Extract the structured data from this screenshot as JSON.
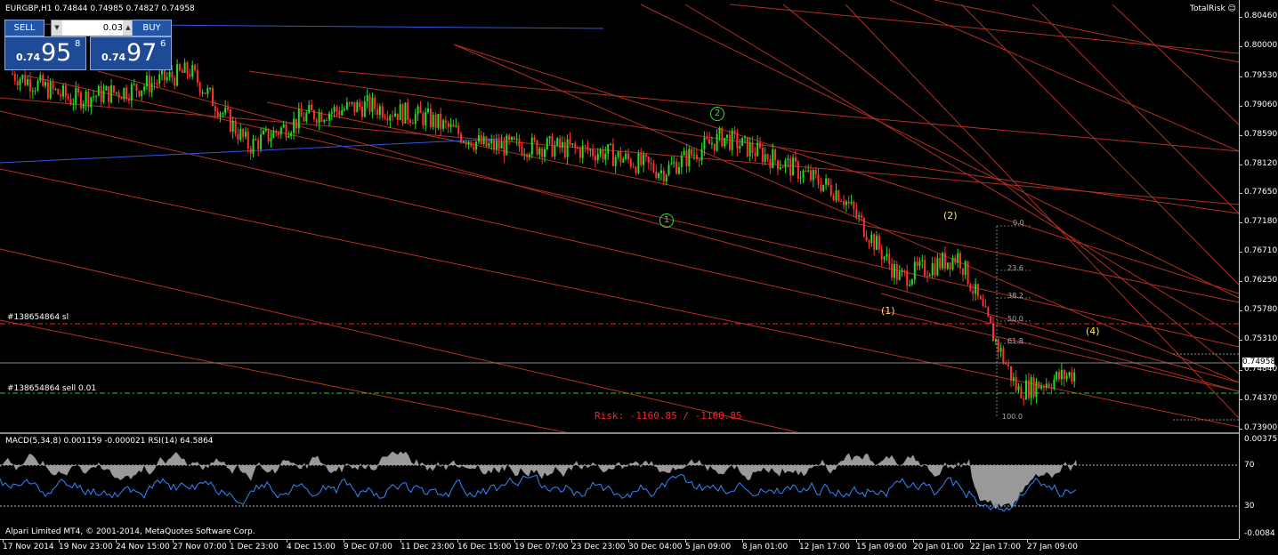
{
  "header": {
    "symbol_title": "EURGBP,H1  0.74844 0.74985 0.74827 0.74958",
    "total_risk": "TotalRisk ☺"
  },
  "one_click": {
    "sell_label": "SELL",
    "buy_label": "BUY",
    "lot_value": "0.03",
    "sell_price_prefix": "0.74",
    "sell_price_big": "95",
    "sell_price_sup": "8",
    "buy_price_prefix": "0.74",
    "buy_price_big": "97",
    "buy_price_sup": "6"
  },
  "orders": {
    "sl_label": "#138654864 sl",
    "sell_label": "#138654864 sell 0.01"
  },
  "risk_text": "Risk: -1160.85 / -1160.85",
  "fib_levels": [
    "0.0",
    "23.6",
    "38.2",
    "50.0",
    "61.8",
    "100.0"
  ],
  "waves": {
    "green": [
      "1",
      "2"
    ],
    "yellow": [
      "(1)",
      "(2)",
      "(4)"
    ]
  },
  "price_axis": [
    "0.80460",
    "0.80000",
    "0.79530",
    "0.79060",
    "0.78590",
    "0.78120",
    "0.77650",
    "0.77180",
    "0.76710",
    "0.76250",
    "0.75780",
    "0.75310",
    "0.74840",
    "0.74370",
    "0.73900"
  ],
  "current_price": "0.74958",
  "indicator": {
    "title": "MACD(5,34,8) 0.001159 -0.000021  RSI(14) 64.5864",
    "axis_top": "0.00375",
    "axis_mid": "70",
    "axis_low": "30",
    "axis_bottom": "-0.0084"
  },
  "time_axis": [
    "17 Nov 2014",
    "19 Nov 23:00",
    "24 Nov 15:00",
    "27 Nov 07:00",
    "1 Dec 23:00",
    "4 Dec 15:00",
    "9 Dec 07:00",
    "11 Dec 23:00",
    "16 Dec 15:00",
    "19 Dec 07:00",
    "23 Dec 23:00",
    "30 Dec 04:00",
    "5 Jan 09:00",
    "8 Jan 01:00",
    "12 Jan 17:00",
    "15 Jan 09:00",
    "20 Jan 01:00",
    "22 Jan 17:00",
    "27 Jan 09:00"
  ],
  "copyright": "Alpari Limited MT4, © 2001-2014, MetaQuotes Software Corp.",
  "chart_data": {
    "type": "line",
    "title": "",
    "symbol": "EURGBP",
    "timeframe": "H1",
    "y_axis_range": [
      0.739,
      0.8046
    ],
    "series": [
      {
        "name": "",
        "x": [
          "17 Nov 2014",
          "19 Nov 23:00",
          "24 Nov 15:00",
          "27 Nov 07:00",
          "1 Dec 23:00",
          "4 Dec 15:00",
          "9 Dec 07:00",
          "11 Dec 23:00",
          "16 Dec 15:00",
          "19 Dec 07:00",
          "23 Dec 23:00",
          "30 Dec 04:00",
          "5 Jan 09:00",
          "8 Jan 01:00",
          "12 Jan 17:00",
          "15 Jan 09:00",
          "20 Jan 01:00",
          "22 Jan 17:00",
          "27 Jan 09:00"
        ],
        "values": [
          0.7955,
          0.7915,
          0.793,
          0.796,
          0.784,
          0.789,
          0.7905,
          0.7885,
          0.784,
          0.784,
          0.783,
          0.78,
          0.7855,
          0.7815,
          0.7765,
          0.763,
          0.7665,
          0.745,
          0.748
        ]
      }
    ],
    "colors": {
      "bull": "#22dd22",
      "bear": "#ff3030",
      "channel": "#b03020",
      "trend": "#3355dd",
      "macd_hist": "#999999",
      "rsi": "#3388ff",
      "sl_line": "#ff2020",
      "order_line": "#22cc22"
    }
  }
}
